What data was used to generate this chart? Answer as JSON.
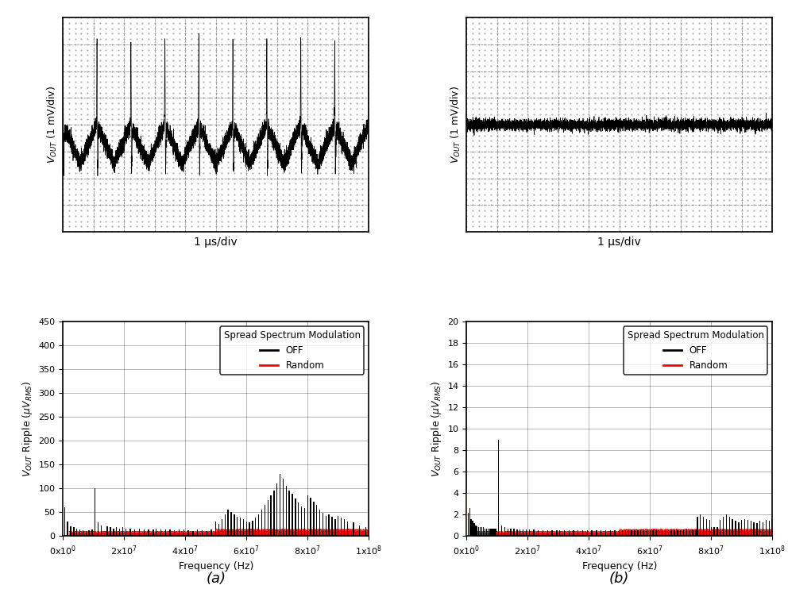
{
  "fig_width": 9.92,
  "fig_height": 7.42,
  "background_color": "#ffffff",
  "osc_a": {
    "ylabel": "$V_{OUT}$ (1 mV/div)",
    "xlabel": "1 μs/div",
    "n_periods": 9,
    "ripple_amplitude": 0.38,
    "spike_amplitude": 0.92,
    "noise_amplitude": 0.04,
    "xlim": [
      0,
      10
    ],
    "ylim": [
      -1.05,
      1.05
    ],
    "n_grid_x": 10,
    "n_grid_y": 8
  },
  "osc_b": {
    "ylabel": "$V_{OUT}$ (1 mV/div)",
    "xlabel": "1 μs/div",
    "noise_amplitude": 0.025,
    "xlim": [
      0,
      10
    ],
    "ylim": [
      -1.05,
      1.05
    ],
    "n_grid_x": 10,
    "n_grid_y": 8
  },
  "spectrum_a": {
    "ylabel": "$V_{OUT}$ Ripple ($\\mu V_{RMS}$)",
    "xlabel": "Frequency (Hz)",
    "xlim": [
      0,
      100000000.0
    ],
    "ylim": [
      0,
      450
    ],
    "yticks": [
      0,
      50,
      100,
      150,
      200,
      250,
      300,
      350,
      400,
      450
    ],
    "xticks": [
      0,
      20000000.0,
      40000000.0,
      60000000.0,
      80000000.0,
      100000000.0
    ],
    "xticklabels": [
      "0x10$^0$",
      "2x10$^7$",
      "4x10$^7$",
      "6x10$^7$",
      "8x10$^7$",
      "1x10$^8$"
    ],
    "legend_title": "Spread Spectrum Modulation",
    "legend_off": "OFF",
    "legend_random": "Random",
    "off_color": "#000000",
    "random_color": "#ff0000",
    "label": "(a)",
    "harmonics_off": [
      [
        500000.0,
        60
      ],
      [
        1500000.0,
        30
      ],
      [
        2500000.0,
        20
      ],
      [
        3500000.0,
        18
      ],
      [
        4500000.0,
        15
      ],
      [
        5500000.0,
        13
      ],
      [
        6500000.0,
        12
      ],
      [
        7500000.0,
        11
      ],
      [
        8500000.0,
        12
      ],
      [
        9500000.0,
        13
      ],
      [
        10500000.0,
        100
      ],
      [
        11500000.0,
        28
      ],
      [
        12500000.0,
        22
      ],
      [
        14500000.0,
        20
      ],
      [
        15500000.0,
        18
      ],
      [
        16500000.0,
        16
      ],
      [
        17500000.0,
        18
      ],
      [
        18500000.0,
        16
      ],
      [
        19500000.0,
        18
      ],
      [
        20500000.0,
        16
      ],
      [
        22000000.0,
        15
      ],
      [
        23500000.0,
        14
      ],
      [
        25000000.0,
        15
      ],
      [
        26500000.0,
        13
      ],
      [
        28000000.0,
        14
      ],
      [
        29500000.0,
        13
      ],
      [
        30500000.0,
        15
      ],
      [
        32000000.0,
        14
      ],
      [
        33500000.0,
        13
      ],
      [
        35000000.0,
        14
      ],
      [
        36500000.0,
        12
      ],
      [
        38000000.0,
        13
      ],
      [
        39500000.0,
        14
      ],
      [
        41000000.0,
        12
      ],
      [
        42500000.0,
        11
      ],
      [
        44000000.0,
        13
      ],
      [
        45500000.0,
        12
      ],
      [
        47000000.0,
        11
      ],
      [
        48500000.0,
        13
      ],
      [
        50000000.0,
        30
      ],
      [
        51000000.0,
        25
      ],
      [
        52000000.0,
        35
      ],
      [
        53000000.0,
        45
      ],
      [
        54000000.0,
        55
      ],
      [
        55000000.0,
        50
      ],
      [
        56000000.0,
        45
      ],
      [
        57000000.0,
        40
      ],
      [
        58000000.0,
        38
      ],
      [
        59000000.0,
        35
      ],
      [
        60000000.0,
        30
      ],
      [
        61000000.0,
        28
      ],
      [
        62000000.0,
        32
      ],
      [
        63000000.0,
        38
      ],
      [
        64000000.0,
        45
      ],
      [
        65000000.0,
        55
      ],
      [
        66000000.0,
        65
      ],
      [
        67000000.0,
        75
      ],
      [
        68000000.0,
        85
      ],
      [
        69000000.0,
        95
      ],
      [
        70000000.0,
        110
      ],
      [
        71000000.0,
        130
      ],
      [
        72000000.0,
        120
      ],
      [
        73000000.0,
        105
      ],
      [
        74000000.0,
        95
      ],
      [
        75000000.0,
        88
      ],
      [
        76000000.0,
        78
      ],
      [
        77000000.0,
        70
      ],
      [
        78000000.0,
        62
      ],
      [
        79000000.0,
        58
      ],
      [
        80000000.0,
        85
      ],
      [
        81000000.0,
        80
      ],
      [
        82000000.0,
        72
      ],
      [
        83000000.0,
        65
      ],
      [
        84000000.0,
        55
      ],
      [
        85000000.0,
        48
      ],
      [
        86000000.0,
        42
      ],
      [
        87000000.0,
        45
      ],
      [
        88000000.0,
        40
      ],
      [
        89000000.0,
        35
      ],
      [
        90000000.0,
        42
      ],
      [
        91000000.0,
        38
      ],
      [
        92000000.0,
        35
      ],
      [
        93000000.0,
        30
      ],
      [
        95000000.0,
        28
      ],
      [
        97000000.0,
        22
      ],
      [
        99000000.0,
        18
      ]
    ],
    "rand_dc": 140
  },
  "spectrum_b": {
    "ylabel": "$V_{OUT}$ Ripple ($\\mu V_{RMS}$)",
    "xlabel": "Frequency (Hz)",
    "xlim": [
      0,
      100000000.0
    ],
    "ylim": [
      0,
      20
    ],
    "yticks": [
      0,
      2,
      4,
      6,
      8,
      10,
      12,
      14,
      16,
      18,
      20
    ],
    "xticks": [
      0,
      20000000.0,
      40000000.0,
      60000000.0,
      80000000.0,
      100000000.0
    ],
    "xticklabels": [
      "0x10$^0$",
      "2x10$^7$",
      "4x10$^7$",
      "6x10$^7$",
      "8x10$^7$",
      "1x10$^8$"
    ],
    "legend_title": "Spread Spectrum Modulation",
    "legend_off": "OFF",
    "legend_random": "Random",
    "off_color": "#000000",
    "random_color": "#ff0000",
    "label": "(b)",
    "harmonics_off": [
      [
        500000.0,
        2.2
      ],
      [
        1000000.0,
        2.6
      ],
      [
        1500000.0,
        1.6
      ],
      [
        2000000.0,
        1.4
      ],
      [
        2500000.0,
        1.2
      ],
      [
        3000000.0,
        1.0
      ],
      [
        3500000.0,
        0.9
      ],
      [
        4000000.0,
        0.8
      ],
      [
        4500000.0,
        0.8
      ],
      [
        5000000.0,
        0.8
      ],
      [
        5500000.0,
        0.8
      ],
      [
        6000000.0,
        0.7
      ],
      [
        6500000.0,
        0.7
      ],
      [
        7000000.0,
        0.7
      ],
      [
        7500000.0,
        0.7
      ],
      [
        8000000.0,
        0.7
      ],
      [
        8500000.0,
        0.7
      ],
      [
        9000000.0,
        0.7
      ],
      [
        9500000.0,
        0.7
      ],
      [
        10500000.0,
        9.0
      ],
      [
        11500000.0,
        1.0
      ],
      [
        12500000.0,
        0.8
      ],
      [
        13500000.0,
        0.7
      ],
      [
        14500000.0,
        0.7
      ],
      [
        15500000.0,
        0.7
      ],
      [
        16500000.0,
        0.6
      ],
      [
        17500000.0,
        0.6
      ],
      [
        18500000.0,
        0.6
      ],
      [
        19500000.0,
        0.6
      ],
      [
        20500000.0,
        0.6
      ],
      [
        22000000.0,
        0.6
      ],
      [
        23500000.0,
        0.5
      ],
      [
        25000000.0,
        0.5
      ],
      [
        26500000.0,
        0.5
      ],
      [
        28000000.0,
        0.5
      ],
      [
        29500000.0,
        0.5
      ],
      [
        30500000.0,
        0.5
      ],
      [
        32000000.0,
        0.5
      ],
      [
        33500000.0,
        0.5
      ],
      [
        35000000.0,
        0.5
      ],
      [
        36500000.0,
        0.5
      ],
      [
        38000000.0,
        0.5
      ],
      [
        39500000.0,
        0.5
      ],
      [
        41000000.0,
        0.5
      ],
      [
        42500000.0,
        0.5
      ],
      [
        44000000.0,
        0.5
      ],
      [
        45500000.0,
        0.5
      ],
      [
        47000000.0,
        0.5
      ],
      [
        48500000.0,
        0.5
      ],
      [
        50000000.0,
        0.5
      ],
      [
        51000000.0,
        0.5
      ],
      [
        52000000.0,
        0.5
      ],
      [
        53000000.0,
        0.5
      ],
      [
        54000000.0,
        0.5
      ],
      [
        55000000.0,
        0.5
      ],
      [
        56000000.0,
        0.5
      ],
      [
        57000000.0,
        0.5
      ],
      [
        58000000.0,
        0.5
      ],
      [
        59000000.0,
        0.5
      ],
      [
        60000000.0,
        0.5
      ],
      [
        61000000.0,
        0.5
      ],
      [
        62000000.0,
        0.5
      ],
      [
        63000000.0,
        0.5
      ],
      [
        64000000.0,
        0.5
      ],
      [
        65000000.0,
        0.5
      ],
      [
        66000000.0,
        0.5
      ],
      [
        67000000.0,
        0.5
      ],
      [
        68000000.0,
        0.5
      ],
      [
        69000000.0,
        0.5
      ],
      [
        70000000.0,
        0.5
      ],
      [
        71000000.0,
        0.6
      ],
      [
        72000000.0,
        0.6
      ],
      [
        73000000.0,
        0.6
      ],
      [
        74000000.0,
        0.6
      ],
      [
        75000000.0,
        0.6
      ],
      [
        75500000.0,
        1.8
      ],
      [
        76500000.0,
        2.0
      ],
      [
        77500000.0,
        1.8
      ],
      [
        78500000.0,
        1.6
      ],
      [
        79500000.0,
        1.5
      ],
      [
        80000000.0,
        0.8
      ],
      [
        81000000.0,
        0.8
      ],
      [
        82000000.0,
        0.8
      ],
      [
        83000000.0,
        1.5
      ],
      [
        84000000.0,
        1.8
      ],
      [
        85000000.0,
        2.0
      ],
      [
        86000000.0,
        1.8
      ],
      [
        87000000.0,
        1.6
      ],
      [
        88000000.0,
        1.4
      ],
      [
        89000000.0,
        1.3
      ],
      [
        90000000.0,
        1.5
      ],
      [
        91000000.0,
        1.6
      ],
      [
        92000000.0,
        1.5
      ],
      [
        93000000.0,
        1.4
      ],
      [
        94000000.0,
        1.3
      ],
      [
        95000000.0,
        1.2
      ],
      [
        96000000.0,
        1.4
      ],
      [
        97000000.0,
        1.3
      ],
      [
        98000000.0,
        1.5
      ],
      [
        99000000.0,
        1.4
      ],
      [
        100000000.0,
        1.6
      ]
    ],
    "rand_dc": 4.0
  }
}
